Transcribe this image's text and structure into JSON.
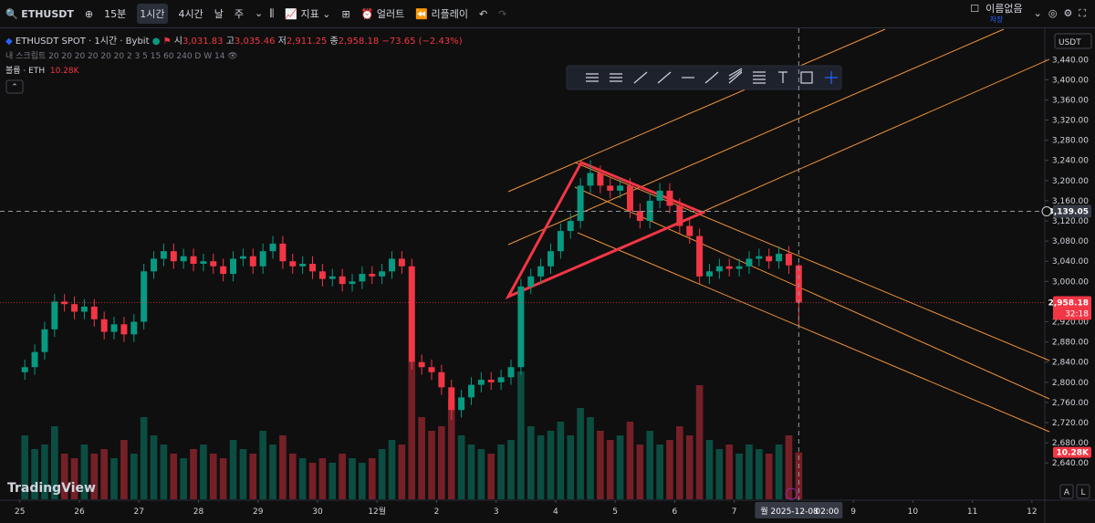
{
  "toolbar": {
    "symbol": "ETHUSDT",
    "intervals": [
      "15분",
      "1시간",
      "4시간",
      "날",
      "주"
    ],
    "indicators": "지표",
    "alert": "얼러트",
    "replay": "리플레이",
    "layout_name": "이름없음",
    "save": "저장"
  },
  "legend": {
    "title": "ETHUSDT SPOT · 1시간 · Bybit",
    "open_label": "시",
    "open": "3,031.83",
    "high_label": "고",
    "high": "3,035.46",
    "low_label": "저",
    "low": "2,911.25",
    "close_label": "종",
    "close": "2,958.18",
    "change": "−73.65 (−2.43%)",
    "scripts": "내 스크립트 20 20 20 20 20 20 2 3 5 15 60 240 D W 14",
    "volume_label": "볼륨 · ETH",
    "volume": "10.28K"
  },
  "chart_data": {
    "type": "candlestick",
    "currency": "USDT",
    "up_color": "#089981",
    "down_color": "#f23645",
    "open": [
      2820,
      2830,
      2860,
      2905,
      2960,
      2955,
      2940,
      2950,
      2925,
      2900,
      2915,
      2895,
      2920,
      3020,
      3045,
      3060,
      3040,
      3050,
      3035,
      3040,
      3030,
      3015,
      3045,
      3050,
      3030,
      3060,
      3075,
      3040,
      3030,
      3035,
      3020,
      3005,
      3010,
      2995,
      3000,
      3015,
      3010,
      3020,
      3045,
      3030,
      2840,
      2830,
      2820,
      2790,
      2745,
      2770,
      2795,
      2805,
      2800,
      2810,
      2830,
      2990,
      3010,
      3030,
      3060,
      3100,
      3120,
      3190,
      3215,
      3190,
      3180,
      3190,
      3140,
      3120,
      3160,
      3180,
      3150,
      3110,
      3090,
      3010,
      3020,
      3030,
      3025,
      3030,
      3045,
      3050,
      3040,
      3055,
      3031.83
    ],
    "high": [
      2845,
      2875,
      2920,
      2975,
      2975,
      2970,
      2965,
      2965,
      2940,
      2930,
      2930,
      2935,
      3035,
      3060,
      3075,
      3075,
      3065,
      3065,
      3055,
      3055,
      3045,
      3060,
      3065,
      3065,
      3075,
      3090,
      3090,
      3055,
      3050,
      3050,
      3035,
      3025,
      3025,
      3015,
      3030,
      3030,
      3035,
      3060,
      3060,
      3045,
      2855,
      2845,
      2835,
      2805,
      2785,
      2810,
      2820,
      2820,
      2825,
      2845,
      3005,
      3025,
      3045,
      3075,
      3115,
      3135,
      3205,
      3240,
      3230,
      3205,
      3205,
      3205,
      3155,
      3175,
      3195,
      3195,
      3165,
      3125,
      3105,
      3035,
      3045,
      3045,
      3045,
      3060,
      3065,
      3065,
      3070,
      3070,
      3035.46
    ],
    "low": [
      2805,
      2815,
      2845,
      2890,
      2940,
      2925,
      2925,
      2910,
      2885,
      2885,
      2880,
      2880,
      2905,
      3005,
      3030,
      3025,
      3025,
      3020,
      3020,
      3015,
      3000,
      3000,
      3030,
      3015,
      3015,
      3045,
      3025,
      3015,
      3015,
      3005,
      2990,
      2990,
      2980,
      2980,
      2985,
      2995,
      2995,
      3005,
      3015,
      2825,
      2815,
      2805,
      2775,
      2725,
      2730,
      2755,
      2780,
      2785,
      2785,
      2795,
      2815,
      2975,
      2995,
      3015,
      3045,
      3085,
      3105,
      3175,
      3175,
      3165,
      3165,
      3125,
      3105,
      3105,
      3145,
      3135,
      3095,
      3075,
      2995,
      2995,
      3005,
      3010,
      3010,
      3015,
      3030,
      3025,
      3025,
      3015,
      2911.25
    ],
    "close": [
      2830,
      2860,
      2905,
      2960,
      2955,
      2940,
      2950,
      2925,
      2900,
      2915,
      2895,
      2920,
      3020,
      3045,
      3060,
      3040,
      3050,
      3035,
      3040,
      3030,
      3015,
      3045,
      3050,
      3030,
      3060,
      3075,
      3040,
      3030,
      3035,
      3020,
      3005,
      3010,
      2995,
      3000,
      3015,
      3010,
      3020,
      3045,
      3030,
      2840,
      2830,
      2820,
      2790,
      2745,
      2770,
      2795,
      2805,
      2800,
      2810,
      2830,
      2990,
      3010,
      3030,
      3060,
      3100,
      3120,
      3190,
      3215,
      3190,
      3180,
      3190,
      3140,
      3120,
      3160,
      3180,
      3150,
      3110,
      3090,
      3010,
      3020,
      3030,
      3025,
      3030,
      3045,
      3050,
      3040,
      3055,
      3031.83,
      2958.18
    ],
    "volume": [
      14,
      11,
      12,
      16,
      10,
      9,
      12,
      10,
      11,
      9,
      13,
      10,
      18,
      14,
      12,
      10,
      9,
      11,
      12,
      10,
      9,
      13,
      11,
      10,
      15,
      12,
      14,
      10,
      9,
      8,
      9,
      8,
      10,
      9,
      8,
      9,
      11,
      13,
      12,
      30,
      18,
      15,
      16,
      22,
      14,
      12,
      11,
      10,
      12,
      13,
      28,
      16,
      14,
      15,
      17,
      14,
      20,
      18,
      15,
      13,
      14,
      17,
      12,
      15,
      12,
      13,
      16,
      14,
      25,
      13,
      11,
      12,
      10,
      12,
      11,
      10,
      12,
      14,
      10.28
    ],
    "ylim": [
      2568,
      3502
    ],
    "yticks": [
      {
        "value": 3440,
        "label": "3,440.00"
      },
      {
        "value": 3400,
        "label": "3,400.00"
      },
      {
        "value": 3360,
        "label": "3,360.00"
      },
      {
        "value": 3320,
        "label": "3,320.00"
      },
      {
        "value": 3280,
        "label": "3,280.00"
      },
      {
        "value": 3240,
        "label": "3,240.00"
      },
      {
        "value": 3200,
        "label": "3,200.00"
      },
      {
        "value": 3160,
        "label": "3,160.00"
      },
      {
        "value": 3120,
        "label": "3,120.00"
      },
      {
        "value": 3080,
        "label": "3,080.00"
      },
      {
        "value": 3040,
        "label": "3,040.00"
      },
      {
        "value": 3000,
        "label": "3,000.00"
      },
      {
        "value": 2920,
        "label": "2,920.00"
      },
      {
        "value": 2880,
        "label": "2,880.00"
      },
      {
        "value": 2840,
        "label": "2,840.00"
      },
      {
        "value": 2800,
        "label": "2,800.00"
      },
      {
        "value": 2760,
        "label": "2,760.00"
      },
      {
        "value": 2720,
        "label": "2,720.00"
      },
      {
        "value": 2680,
        "label": "2,680.00"
      },
      {
        "value": 2640,
        "label": "2,640.00"
      }
    ],
    "xlim": [
      -2,
      103.3
    ],
    "xticks": [
      {
        "value": 0,
        "label": "25"
      },
      {
        "value": 6,
        "label": "26"
      },
      {
        "value": 12,
        "label": "27"
      },
      {
        "value": 18,
        "label": "28"
      },
      {
        "value": 24,
        "label": "29"
      },
      {
        "value": 30,
        "label": "30"
      },
      {
        "value": 36,
        "label": "12월"
      },
      {
        "value": 42,
        "label": "2"
      },
      {
        "value": 48,
        "label": "3"
      },
      {
        "value": 54,
        "label": "4"
      },
      {
        "value": 60,
        "label": "5"
      },
      {
        "value": 66,
        "label": "6"
      },
      {
        "value": 72,
        "label": "7"
      },
      {
        "value": 84,
        "label": "9"
      },
      {
        "value": 90,
        "label": "10"
      },
      {
        "value": 96,
        "label": "11"
      },
      {
        "value": 102,
        "label": "12"
      }
    ],
    "last_price": {
      "value": 2958.18,
      "label": "2,958.18"
    },
    "countdown": "32:18",
    "crosshair": {
      "price": {
        "value": 3139.05,
        "label": "3,139.05"
      },
      "date_label": "월 2025-12-08",
      "time_label": "02:00"
    },
    "volume_tag": {
      "value": 10.28,
      "label": "10.28K"
    }
  },
  "footer": {
    "brand": "TradingView",
    "auto": "A",
    "log": "L"
  }
}
